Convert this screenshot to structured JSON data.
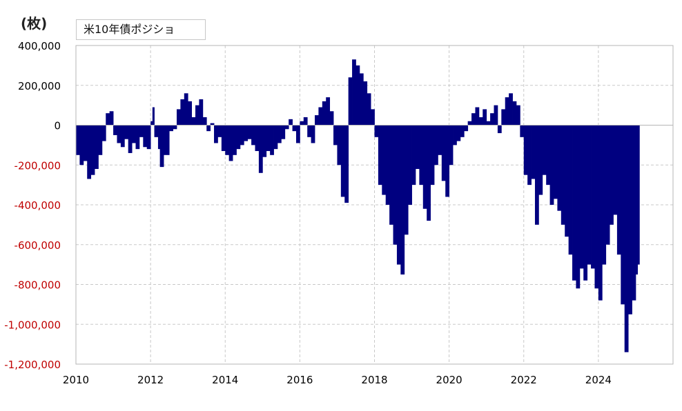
{
  "chart_data": {
    "type": "bar",
    "unit_label": "(枚)",
    "legend": [
      {
        "name": "米10年債ポジショ",
        "color": "#000080"
      }
    ],
    "xlim": [
      2010,
      2026
    ],
    "ylim": [
      -1200000,
      400000
    ],
    "x_ticks": [
      "2010",
      "2012",
      "2014",
      "2016",
      "2018",
      "2020",
      "2022",
      "2024"
    ],
    "y_ticks": [
      {
        "value": 400000,
        "label": "400,000"
      },
      {
        "value": 200000,
        "label": "200,000"
      },
      {
        "value": 0,
        "label": "0"
      },
      {
        "value": -200000,
        "label": "-200,000"
      },
      {
        "value": -400000,
        "label": "-400,000"
      },
      {
        "value": -600000,
        "label": "-600,000"
      },
      {
        "value": -800000,
        "label": "-800,000"
      },
      {
        "value": -1000000,
        "label": "-1,000,000"
      },
      {
        "value": -1200000,
        "label": "-1,200,000"
      }
    ],
    "grid": true,
    "colors": {
      "bars": "#000080",
      "positive_tick": "#000000",
      "negative_tick": "#c00000",
      "grid": "#c8c8c8"
    },
    "series": [
      {
        "name": "米10年債ポジショ",
        "points": [
          [
            2010.0,
            -150000
          ],
          [
            2010.1,
            -200000
          ],
          [
            2010.2,
            -180000
          ],
          [
            2010.3,
            -270000
          ],
          [
            2010.4,
            -250000
          ],
          [
            2010.5,
            -220000
          ],
          [
            2010.6,
            -150000
          ],
          [
            2010.7,
            -80000
          ],
          [
            2010.8,
            60000
          ],
          [
            2010.9,
            70000
          ],
          [
            2011.0,
            -50000
          ],
          [
            2011.1,
            -90000
          ],
          [
            2011.2,
            -110000
          ],
          [
            2011.3,
            -70000
          ],
          [
            2011.4,
            -140000
          ],
          [
            2011.5,
            -90000
          ],
          [
            2011.6,
            -120000
          ],
          [
            2011.7,
            -60000
          ],
          [
            2011.8,
            -110000
          ],
          [
            2011.9,
            -120000
          ],
          [
            2012.0,
            20000
          ],
          [
            2012.05,
            90000
          ],
          [
            2012.1,
            -60000
          ],
          [
            2012.2,
            -120000
          ],
          [
            2012.25,
            -210000
          ],
          [
            2012.35,
            -150000
          ],
          [
            2012.5,
            -30000
          ],
          [
            2012.6,
            -20000
          ],
          [
            2012.7,
            80000
          ],
          [
            2012.8,
            130000
          ],
          [
            2012.9,
            160000
          ],
          [
            2013.0,
            120000
          ],
          [
            2013.1,
            40000
          ],
          [
            2013.2,
            100000
          ],
          [
            2013.3,
            130000
          ],
          [
            2013.4,
            40000
          ],
          [
            2013.5,
            -30000
          ],
          [
            2013.6,
            10000
          ],
          [
            2013.7,
            -90000
          ],
          [
            2013.8,
            -60000
          ],
          [
            2013.9,
            -130000
          ],
          [
            2014.0,
            -150000
          ],
          [
            2014.1,
            -180000
          ],
          [
            2014.2,
            -150000
          ],
          [
            2014.3,
            -120000
          ],
          [
            2014.4,
            -100000
          ],
          [
            2014.5,
            -80000
          ],
          [
            2014.6,
            -70000
          ],
          [
            2014.7,
            -100000
          ],
          [
            2014.8,
            -130000
          ],
          [
            2014.9,
            -240000
          ],
          [
            2015.0,
            -160000
          ],
          [
            2015.1,
            -130000
          ],
          [
            2015.2,
            -150000
          ],
          [
            2015.3,
            -120000
          ],
          [
            2015.4,
            -90000
          ],
          [
            2015.5,
            -70000
          ],
          [
            2015.6,
            -20000
          ],
          [
            2015.7,
            30000
          ],
          [
            2015.8,
            -30000
          ],
          [
            2015.9,
            -90000
          ],
          [
            2016.0,
            20000
          ],
          [
            2016.1,
            40000
          ],
          [
            2016.2,
            -60000
          ],
          [
            2016.3,
            -90000
          ],
          [
            2016.4,
            50000
          ],
          [
            2016.5,
            90000
          ],
          [
            2016.6,
            120000
          ],
          [
            2016.7,
            140000
          ],
          [
            2016.8,
            70000
          ],
          [
            2016.9,
            -100000
          ],
          [
            2017.0,
            -200000
          ],
          [
            2017.1,
            -360000
          ],
          [
            2017.2,
            -390000
          ],
          [
            2017.3,
            240000
          ],
          [
            2017.4,
            330000
          ],
          [
            2017.5,
            300000
          ],
          [
            2017.6,
            260000
          ],
          [
            2017.7,
            220000
          ],
          [
            2017.8,
            160000
          ],
          [
            2017.9,
            80000
          ],
          [
            2018.0,
            -60000
          ],
          [
            2018.1,
            -300000
          ],
          [
            2018.2,
            -350000
          ],
          [
            2018.3,
            -400000
          ],
          [
            2018.4,
            -500000
          ],
          [
            2018.5,
            -600000
          ],
          [
            2018.6,
            -700000
          ],
          [
            2018.7,
            -750000
          ],
          [
            2018.8,
            -550000
          ],
          [
            2018.9,
            -400000
          ],
          [
            2019.0,
            -300000
          ],
          [
            2019.1,
            -220000
          ],
          [
            2019.2,
            -300000
          ],
          [
            2019.3,
            -420000
          ],
          [
            2019.4,
            -480000
          ],
          [
            2019.5,
            -300000
          ],
          [
            2019.6,
            -200000
          ],
          [
            2019.7,
            -150000
          ],
          [
            2019.8,
            -280000
          ],
          [
            2019.9,
            -360000
          ],
          [
            2020.0,
            -200000
          ],
          [
            2020.1,
            -100000
          ],
          [
            2020.2,
            -80000
          ],
          [
            2020.3,
            -60000
          ],
          [
            2020.4,
            -30000
          ],
          [
            2020.5,
            20000
          ],
          [
            2020.6,
            60000
          ],
          [
            2020.7,
            90000
          ],
          [
            2020.8,
            40000
          ],
          [
            2020.9,
            80000
          ],
          [
            2021.0,
            20000
          ],
          [
            2021.1,
            60000
          ],
          [
            2021.2,
            100000
          ],
          [
            2021.3,
            -40000
          ],
          [
            2021.4,
            80000
          ],
          [
            2021.5,
            140000
          ],
          [
            2021.6,
            160000
          ],
          [
            2021.7,
            120000
          ],
          [
            2021.8,
            100000
          ],
          [
            2021.9,
            -60000
          ],
          [
            2022.0,
            -250000
          ],
          [
            2022.1,
            -300000
          ],
          [
            2022.2,
            -270000
          ],
          [
            2022.3,
            -500000
          ],
          [
            2022.4,
            -350000
          ],
          [
            2022.5,
            -250000
          ],
          [
            2022.6,
            -300000
          ],
          [
            2022.7,
            -400000
          ],
          [
            2022.8,
            -370000
          ],
          [
            2022.9,
            -430000
          ],
          [
            2023.0,
            -500000
          ],
          [
            2023.1,
            -560000
          ],
          [
            2023.2,
            -650000
          ],
          [
            2023.3,
            -780000
          ],
          [
            2023.4,
            -820000
          ],
          [
            2023.5,
            -720000
          ],
          [
            2023.6,
            -780000
          ],
          [
            2023.7,
            -700000
          ],
          [
            2023.8,
            -720000
          ],
          [
            2023.9,
            -820000
          ],
          [
            2024.0,
            -880000
          ],
          [
            2024.1,
            -700000
          ],
          [
            2024.2,
            -600000
          ],
          [
            2024.3,
            -500000
          ],
          [
            2024.4,
            -450000
          ],
          [
            2024.5,
            -650000
          ],
          [
            2024.6,
            -900000
          ],
          [
            2024.7,
            -1140000
          ],
          [
            2024.8,
            -950000
          ],
          [
            2024.9,
            -880000
          ],
          [
            2025.0,
            -750000
          ],
          [
            2025.05,
            -700000
          ]
        ]
      }
    ]
  }
}
